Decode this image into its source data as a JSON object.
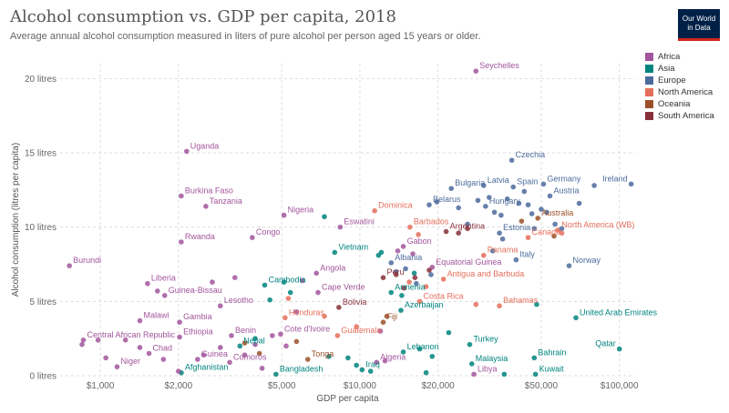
{
  "header": {
    "title": "Alcohol consumption vs. GDP per capita, 2018",
    "subtitle": "Average annual alcohol consumption measured in liters of pure alcohol per person aged 15 years or older.",
    "logo_line1": "Our World",
    "logo_line2": "in Data"
  },
  "colors": {
    "Africa": "#a2559c",
    "Asia": "#00847e",
    "Europe": "#4c6a9c",
    "North America": "#e56e5a",
    "Oceania": "#9a5129",
    "South America": "#883039",
    "brand": "#002147",
    "brand_accent": "#ce261e"
  },
  "legend": [
    "Africa",
    "Asia",
    "Europe",
    "North America",
    "Oceania",
    "South America"
  ],
  "chart_data": {
    "type": "scatter",
    "title": "Alcohol consumption vs. GDP per capita, 2018",
    "xlabel": "GDP per capita",
    "ylabel": "Alcohol consumption (litres per capita)",
    "x_scale": "log",
    "xlim": [
      700,
      115000
    ],
    "ylim": [
      0,
      21
    ],
    "x_ticks": [
      {
        "value": 1000,
        "label": "$1,000"
      },
      {
        "value": 2000,
        "label": "$2,000"
      },
      {
        "value": 5000,
        "label": "$5,000"
      },
      {
        "value": 10000,
        "label": "$10,000"
      },
      {
        "value": 20000,
        "label": "$20,000"
      },
      {
        "value": 50000,
        "label": "$50,000"
      },
      {
        "value": 100000,
        "label": "$100,000"
      }
    ],
    "y_ticks": [
      {
        "value": 0,
        "label": "0 litres"
      },
      {
        "value": 5,
        "label": "5 litres"
      },
      {
        "value": 10,
        "label": "10 litres"
      },
      {
        "value": 15,
        "label": "15 litres"
      },
      {
        "value": 20,
        "label": "20 litres"
      }
    ],
    "grid": true,
    "legend_position": "top-right",
    "points": [
      {
        "label": "Seychelles",
        "x": 28000,
        "y": 20.5,
        "region": "Africa"
      },
      {
        "label": "Uganda",
        "x": 2150,
        "y": 15.1,
        "region": "Africa"
      },
      {
        "label": "Burkina Faso",
        "x": 2050,
        "y": 12.1,
        "region": "Africa"
      },
      {
        "label": "Tanzania",
        "x": 2550,
        "y": 11.4,
        "region": "Africa"
      },
      {
        "label": "Nigeria",
        "x": 5100,
        "y": 10.8,
        "region": "Africa"
      },
      {
        "label": "Eswatini",
        "x": 8400,
        "y": 10.0,
        "region": "Africa"
      },
      {
        "label": "Rwanda",
        "x": 2050,
        "y": 9.0,
        "region": "Africa"
      },
      {
        "label": "Congo",
        "x": 3850,
        "y": 9.3,
        "region": "Africa"
      },
      {
        "label": "Burundi",
        "x": 760,
        "y": 7.4,
        "region": "Africa"
      },
      {
        "label": "Gabon",
        "x": 14700,
        "y": 8.7,
        "region": "Africa"
      },
      {
        "label": "Liberia",
        "x": 1520,
        "y": 6.2,
        "region": "Africa"
      },
      {
        "label": "Guinea-Bissau",
        "x": 1770,
        "y": 5.4,
        "region": "Africa"
      },
      {
        "label": "Angola",
        "x": 6800,
        "y": 6.9,
        "region": "Africa"
      },
      {
        "label": "Lesotho",
        "x": 2900,
        "y": 4.7,
        "region": "Africa"
      },
      {
        "label": "Equatorial Guinea",
        "x": 19000,
        "y": 7.3,
        "region": "Africa"
      },
      {
        "label": "Malawi",
        "x": 1420,
        "y": 3.7,
        "region": "Africa"
      },
      {
        "label": "Gambia",
        "x": 2020,
        "y": 3.6,
        "region": "Africa"
      },
      {
        "label": "Central African Republic",
        "x": 860,
        "y": 2.4,
        "region": "Africa"
      },
      {
        "label": "Ethiopia",
        "x": 2020,
        "y": 2.6,
        "region": "Africa"
      },
      {
        "label": "Benin",
        "x": 3200,
        "y": 2.7,
        "region": "Africa"
      },
      {
        "label": "Cote d'Ivoire",
        "x": 4950,
        "y": 2.8,
        "region": "Africa"
      },
      {
        "label": "Chad",
        "x": 1540,
        "y": 1.5,
        "region": "Africa"
      },
      {
        "label": "Niger",
        "x": 1160,
        "y": 0.6,
        "region": "Africa"
      },
      {
        "label": "Guinea",
        "x": 2370,
        "y": 1.1,
        "region": "Africa"
      },
      {
        "label": "Comoros",
        "x": 3150,
        "y": 0.9,
        "region": "Africa"
      },
      {
        "label": "Algeria",
        "x": 11600,
        "y": 0.9,
        "region": "Africa"
      },
      {
        "label": "Libya",
        "x": 27500,
        "y": 0.1,
        "region": "Africa"
      },
      {
        "label": "Vietnam",
        "x": 8000,
        "y": 8.3,
        "region": "Asia"
      },
      {
        "label": "Cambodia",
        "x": 4300,
        "y": 6.1,
        "region": "Asia"
      },
      {
        "label": "Armenia",
        "x": 13200,
        "y": 5.6,
        "region": "Asia"
      },
      {
        "label": "Azerbaijan",
        "x": 14400,
        "y": 4.4,
        "region": "Asia"
      },
      {
        "label": "Nepal",
        "x": 3450,
        "y": 2.0,
        "region": "Asia"
      },
      {
        "label": "United Arab Emirates",
        "x": 68000,
        "y": 3.9,
        "region": "Asia"
      },
      {
        "label": "Turkey",
        "x": 26500,
        "y": 2.1,
        "region": "Asia"
      },
      {
        "label": "Lebanon",
        "x": 14700,
        "y": 1.6,
        "region": "Asia"
      },
      {
        "label": "Qatar",
        "x": 100000,
        "y": 1.8,
        "region": "Asia"
      },
      {
        "label": "Bahrain",
        "x": 47000,
        "y": 1.2,
        "region": "Asia"
      },
      {
        "label": "Malaysia",
        "x": 27000,
        "y": 0.8,
        "region": "Asia"
      },
      {
        "label": "Afghanistan",
        "x": 2050,
        "y": 0.2,
        "region": "Asia"
      },
      {
        "label": "Bangladesh",
        "x": 4750,
        "y": 0.1,
        "region": "Asia"
      },
      {
        "label": "Iraq",
        "x": 10200,
        "y": 0.4,
        "region": "Asia"
      },
      {
        "label": "Kuwait",
        "x": 47500,
        "y": 0.1,
        "region": "Asia"
      },
      {
        "label": "Czechia",
        "x": 38500,
        "y": 14.5,
        "region": "Europe"
      },
      {
        "label": "Bulgaria",
        "x": 22500,
        "y": 12.6,
        "region": "Europe"
      },
      {
        "label": "Latvia",
        "x": 30000,
        "y": 12.8,
        "region": "Europe"
      },
      {
        "label": "Spain",
        "x": 39000,
        "y": 12.7,
        "region": "Europe"
      },
      {
        "label": "Germany",
        "x": 51000,
        "y": 12.9,
        "region": "Europe"
      },
      {
        "label": "Ireland",
        "x": 111000,
        "y": 12.9,
        "region": "Europe"
      },
      {
        "label": "Austria",
        "x": 54000,
        "y": 12.1,
        "region": "Europe"
      },
      {
        "label": "Belarus",
        "x": 18500,
        "y": 11.5,
        "region": "Europe"
      },
      {
        "label": "Hungary",
        "x": 30500,
        "y": 11.4,
        "region": "Europe"
      },
      {
        "label": "Estonia",
        "x": 34500,
        "y": 9.6,
        "region": "Europe"
      },
      {
        "label": "Albania",
        "x": 13200,
        "y": 7.6,
        "region": "Europe"
      },
      {
        "label": "Italy",
        "x": 40000,
        "y": 7.8,
        "region": "Europe"
      },
      {
        "label": "Norway",
        "x": 64000,
        "y": 7.4,
        "region": "Europe"
      },
      {
        "label": "Dominica",
        "x": 11400,
        "y": 11.1,
        "region": "North America"
      },
      {
        "label": "Barbados",
        "x": 15600,
        "y": 10.0,
        "region": "North America"
      },
      {
        "label": "Canada",
        "x": 44500,
        "y": 9.3,
        "region": "North America"
      },
      {
        "label": "Panama",
        "x": 30000,
        "y": 8.1,
        "region": "North America"
      },
      {
        "label": "Antigua and Barbuda",
        "x": 21000,
        "y": 6.5,
        "region": "North America"
      },
      {
        "label": "Costa Rica",
        "x": 17000,
        "y": 5.0,
        "region": "North America"
      },
      {
        "label": "Bahamas",
        "x": 34500,
        "y": 4.7,
        "region": "North America"
      },
      {
        "label": "Honduras",
        "x": 5150,
        "y": 3.9,
        "region": "North America"
      },
      {
        "label": "Guatemala",
        "x": 8200,
        "y": 2.7,
        "region": "North America"
      },
      {
        "label": "North America (WB)",
        "x": 58000,
        "y": 9.8,
        "region": "North America"
      },
      {
        "label": "Australia",
        "x": 48500,
        "y": 10.6,
        "region": "Oceania"
      },
      {
        "label": "Fiji",
        "x": 12300,
        "y": 3.6,
        "region": "Oceania"
      },
      {
        "label": "Tonga",
        "x": 6300,
        "y": 1.1,
        "region": "Oceania"
      },
      {
        "label": "Cape Verde",
        "x": 6900,
        "y": 5.6,
        "region": "Africa"
      },
      {
        "label": "Argentina",
        "x": 21500,
        "y": 9.7,
        "region": "South America"
      },
      {
        "label": "Peru",
        "x": 12300,
        "y": 6.6,
        "region": "South America"
      },
      {
        "label": "Bolivia",
        "x": 8300,
        "y": 4.6,
        "region": "South America"
      },
      {
        "label": "",
        "x": 850,
        "y": 2.1,
        "region": "Africa"
      },
      {
        "label": "",
        "x": 980,
        "y": 2.4,
        "region": "Africa"
      },
      {
        "label": "",
        "x": 1250,
        "y": 2.4,
        "region": "Africa"
      },
      {
        "label": "",
        "x": 1420,
        "y": 1.9,
        "region": "Africa"
      },
      {
        "label": "",
        "x": 1050,
        "y": 1.2,
        "region": "Africa"
      },
      {
        "label": "",
        "x": 1750,
        "y": 1.1,
        "region": "Africa"
      },
      {
        "label": "",
        "x": 2000,
        "y": 0.3,
        "region": "Africa"
      },
      {
        "label": "",
        "x": 2500,
        "y": 1.4,
        "region": "Africa"
      },
      {
        "label": "",
        "x": 2900,
        "y": 1.9,
        "region": "Africa"
      },
      {
        "label": "",
        "x": 3600,
        "y": 1.4,
        "region": "Africa"
      },
      {
        "label": "",
        "x": 3950,
        "y": 2.1,
        "region": "Africa"
      },
      {
        "label": "",
        "x": 4200,
        "y": 0.5,
        "region": "Africa"
      },
      {
        "label": "",
        "x": 5200,
        "y": 2.0,
        "region": "Africa"
      },
      {
        "label": "",
        "x": 5700,
        "y": 4.3,
        "region": "Africa"
      },
      {
        "label": "",
        "x": 6000,
        "y": 6.4,
        "region": "Africa"
      },
      {
        "label": "",
        "x": 3300,
        "y": 6.6,
        "region": "Africa"
      },
      {
        "label": "",
        "x": 2700,
        "y": 6.3,
        "region": "Africa"
      },
      {
        "label": "",
        "x": 1660,
        "y": 5.7,
        "region": "Africa"
      },
      {
        "label": "",
        "x": 4600,
        "y": 2.7,
        "region": "Africa"
      },
      {
        "label": "",
        "x": 12000,
        "y": 3.0,
        "region": "Africa"
      },
      {
        "label": "",
        "x": 12500,
        "y": 1.0,
        "region": "Africa"
      },
      {
        "label": "",
        "x": 14000,
        "y": 8.4,
        "region": "Africa"
      },
      {
        "label": "",
        "x": 16000,
        "y": 8.2,
        "region": "Africa"
      },
      {
        "label": "",
        "x": 3950,
        "y": 2.5,
        "region": "Asia"
      },
      {
        "label": "",
        "x": 4500,
        "y": 5.1,
        "region": "Asia"
      },
      {
        "label": "",
        "x": 5100,
        "y": 6.3,
        "region": "Asia"
      },
      {
        "label": "",
        "x": 5400,
        "y": 5.6,
        "region": "Asia"
      },
      {
        "label": "",
        "x": 7300,
        "y": 10.7,
        "region": "Asia"
      },
      {
        "label": "",
        "x": 7600,
        "y": 1.3,
        "region": "Asia"
      },
      {
        "label": "",
        "x": 9000,
        "y": 1.2,
        "region": "Asia"
      },
      {
        "label": "",
        "x": 11800,
        "y": 8.1,
        "region": "Asia"
      },
      {
        "label": "",
        "x": 12100,
        "y": 8.3,
        "region": "Asia"
      },
      {
        "label": "",
        "x": 14500,
        "y": 5.4,
        "region": "Asia"
      },
      {
        "label": "",
        "x": 16200,
        "y": 6.9,
        "region": "Asia"
      },
      {
        "label": "",
        "x": 17000,
        "y": 1.8,
        "region": "Asia"
      },
      {
        "label": "",
        "x": 19000,
        "y": 1.3,
        "region": "Asia"
      },
      {
        "label": "",
        "x": 22000,
        "y": 2.9,
        "region": "Asia"
      },
      {
        "label": "",
        "x": 11000,
        "y": 0.3,
        "region": "Asia"
      },
      {
        "label": "",
        "x": 9700,
        "y": 0.7,
        "region": "Asia"
      },
      {
        "label": "",
        "x": 18000,
        "y": 0.2,
        "region": "Asia"
      },
      {
        "label": "",
        "x": 36000,
        "y": 0.1,
        "region": "Asia"
      },
      {
        "label": "",
        "x": 48000,
        "y": 4.8,
        "region": "Asia"
      },
      {
        "label": "",
        "x": 13800,
        "y": 7.0,
        "region": "Europe"
      },
      {
        "label": "",
        "x": 15000,
        "y": 7.2,
        "region": "Europe"
      },
      {
        "label": "",
        "x": 16500,
        "y": 6.2,
        "region": "Europe"
      },
      {
        "label": "",
        "x": 18800,
        "y": 6.8,
        "region": "Europe"
      },
      {
        "label": "",
        "x": 19800,
        "y": 11.7,
        "region": "Europe"
      },
      {
        "label": "",
        "x": 24000,
        "y": 11.3,
        "region": "Europe"
      },
      {
        "label": "",
        "x": 26000,
        "y": 10.2,
        "region": "Europe"
      },
      {
        "label": "",
        "x": 28500,
        "y": 11.8,
        "region": "Europe"
      },
      {
        "label": "",
        "x": 31500,
        "y": 12.0,
        "region": "Europe"
      },
      {
        "label": "",
        "x": 33000,
        "y": 11.0,
        "region": "Europe"
      },
      {
        "label": "",
        "x": 35000,
        "y": 10.8,
        "region": "Europe"
      },
      {
        "label": "",
        "x": 37000,
        "y": 11.9,
        "region": "Europe"
      },
      {
        "label": "",
        "x": 41000,
        "y": 11.6,
        "region": "Europe"
      },
      {
        "label": "",
        "x": 43000,
        "y": 12.4,
        "region": "Europe"
      },
      {
        "label": "",
        "x": 44500,
        "y": 11.5,
        "region": "Europe"
      },
      {
        "label": "",
        "x": 46000,
        "y": 10.9,
        "region": "Europe"
      },
      {
        "label": "",
        "x": 50000,
        "y": 11.2,
        "region": "Europe"
      },
      {
        "label": "",
        "x": 52500,
        "y": 11.0,
        "region": "Europe"
      },
      {
        "label": "",
        "x": 56500,
        "y": 10.2,
        "region": "Europe"
      },
      {
        "label": "",
        "x": 60000,
        "y": 9.9,
        "region": "Europe"
      },
      {
        "label": "",
        "x": 70000,
        "y": 11.6,
        "region": "Europe"
      },
      {
        "label": "",
        "x": 80000,
        "y": 12.8,
        "region": "Europe"
      },
      {
        "label": "",
        "x": 47000,
        "y": 9.9,
        "region": "Europe"
      },
      {
        "label": "",
        "x": 32500,
        "y": 8.4,
        "region": "Europe"
      },
      {
        "label": "",
        "x": 35500,
        "y": 9.2,
        "region": "Europe"
      },
      {
        "label": "",
        "x": 16800,
        "y": 9.5,
        "region": "North America"
      },
      {
        "label": "",
        "x": 18000,
        "y": 6.0,
        "region": "North America"
      },
      {
        "label": "",
        "x": 15500,
        "y": 6.3,
        "region": "North America"
      },
      {
        "label": "",
        "x": 7300,
        "y": 4.0,
        "region": "North America"
      },
      {
        "label": "",
        "x": 9700,
        "y": 3.3,
        "region": "North America"
      },
      {
        "label": "",
        "x": 28000,
        "y": 4.8,
        "region": "North America"
      },
      {
        "label": "",
        "x": 5300,
        "y": 5.2,
        "region": "North America"
      },
      {
        "label": "",
        "x": 60000,
        "y": 9.6,
        "region": "North America"
      },
      {
        "label": "",
        "x": 42000,
        "y": 10.4,
        "region": "Oceania"
      },
      {
        "label": "",
        "x": 12700,
        "y": 4.0,
        "region": "Oceania"
      },
      {
        "label": "",
        "x": 4100,
        "y": 1.5,
        "region": "Oceania"
      },
      {
        "label": "",
        "x": 3600,
        "y": 2.2,
        "region": "Oceania"
      },
      {
        "label": "",
        "x": 5700,
        "y": 2.3,
        "region": "Oceania"
      },
      {
        "label": "",
        "x": 56000,
        "y": 9.4,
        "region": "Oceania"
      },
      {
        "label": "",
        "x": 13800,
        "y": 6.8,
        "region": "South America"
      },
      {
        "label": "",
        "x": 14800,
        "y": 5.9,
        "region": "South America"
      },
      {
        "label": "",
        "x": 16300,
        "y": 6.6,
        "region": "South America"
      },
      {
        "label": "",
        "x": 18500,
        "y": 7.1,
        "region": "South America"
      },
      {
        "label": "",
        "x": 24000,
        "y": 9.6,
        "region": "South America"
      },
      {
        "label": "",
        "x": 26000,
        "y": 9.9,
        "region": "South America"
      }
    ]
  }
}
